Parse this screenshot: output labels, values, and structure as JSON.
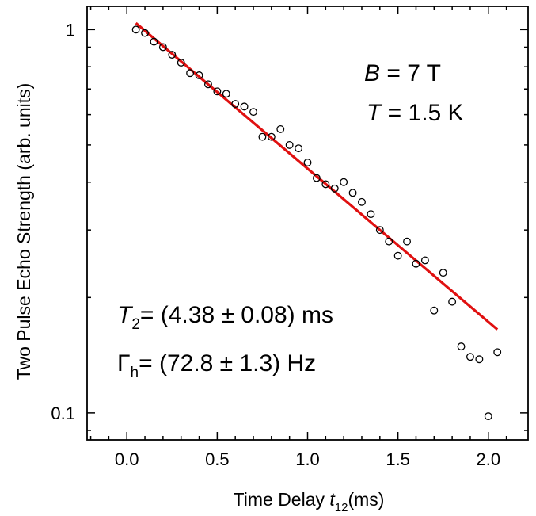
{
  "chart_data": {
    "type": "scatter",
    "title": "",
    "xlabel": {
      "main": "Time Delay ",
      "var": "t",
      "sub": "12",
      "unit": "(ms)"
    },
    "ylabel": "Two Pulse Echo Strength (arb. units)",
    "xlim": [
      -0.22,
      2.22
    ],
    "ylim": [
      0.085,
      1.15
    ],
    "yscale": "log",
    "grid": false,
    "x_ticks": [
      "0.0",
      "0.5",
      "1.0",
      "1.5",
      "2.0"
    ],
    "y_ticks": [
      "0.1",
      "1"
    ],
    "series": [
      {
        "marker": "open-circle",
        "color": "#000000",
        "x": [
          0.05,
          0.1,
          0.15,
          0.2,
          0.25,
          0.3,
          0.35,
          0.4,
          0.45,
          0.5,
          0.55,
          0.6,
          0.65,
          0.7,
          0.75,
          0.8,
          0.85,
          0.9,
          0.95,
          1.0,
          1.05,
          1.1,
          1.15,
          1.2,
          1.25,
          1.3,
          1.35,
          1.4,
          1.45,
          1.5,
          1.55,
          1.6,
          1.65,
          1.7,
          1.75,
          1.8,
          1.85,
          1.9,
          1.95,
          2.0,
          2.05
        ],
        "y": [
          1.0,
          0.98,
          0.93,
          0.9,
          0.86,
          0.82,
          0.77,
          0.76,
          0.72,
          0.69,
          0.68,
          0.64,
          0.63,
          0.61,
          0.525,
          0.525,
          0.55,
          0.5,
          0.49,
          0.45,
          0.41,
          0.395,
          0.385,
          0.4,
          0.375,
          0.355,
          0.33,
          0.3,
          0.28,
          0.257,
          0.28,
          0.245,
          0.25,
          0.185,
          0.232,
          0.195,
          0.149,
          0.14,
          0.138,
          0.098,
          0.144
        ]
      },
      {
        "marker": "line",
        "color": "#e01010",
        "x": [
          0.05,
          2.05
        ],
        "y": [
          1.04,
          0.165
        ]
      }
    ],
    "annotations": {
      "b_var": "B",
      "b_val": " = 7 T",
      "t_var": "T",
      "t_val": " = 1.5 K",
      "t2_var": "T",
      "t2_sub": "2",
      "t2_val": "= (4.38 ± 0.08) ms",
      "gamma_var": "Γ",
      "gamma_sub": "h",
      "gamma_val": "= (72.8 ± 1.3) Hz"
    }
  }
}
